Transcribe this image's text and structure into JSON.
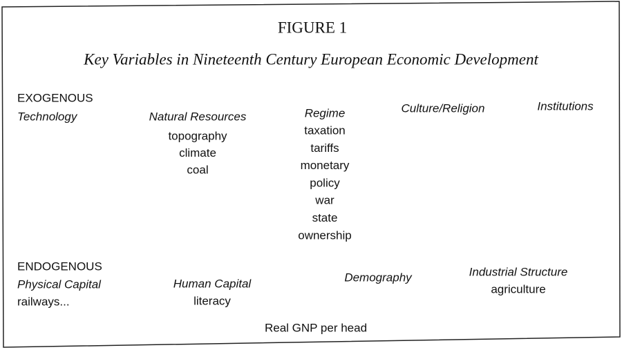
{
  "figure_label": "FIGURE 1",
  "title": "Key Variables in Nineteenth Century European Economic Development",
  "exogenous": {
    "heading": "EXOGENOUS",
    "columns": [
      {
        "heading": "Technology"
      },
      {
        "heading": "Natural Resources",
        "items": [
          "topography",
          "climate",
          "coal"
        ]
      },
      {
        "heading": "Regime",
        "items": [
          "taxation",
          "tariffs",
          "monetary",
          "policy",
          "war",
          "state",
          "ownership"
        ]
      },
      {
        "heading": "Culture/Religion"
      },
      {
        "heading": "Institutions"
      }
    ]
  },
  "endogenous": {
    "heading": "ENDOGENOUS",
    "columns": [
      {
        "heading": "Physical Capital",
        "items": [
          "railways..."
        ]
      },
      {
        "heading": "Human Capital",
        "items": [
          "literacy"
        ]
      },
      {
        "heading": "Demography"
      },
      {
        "heading": "Industrial Structure",
        "items": [
          "agriculture"
        ]
      }
    ]
  },
  "outcome": "Real GNP per head"
}
